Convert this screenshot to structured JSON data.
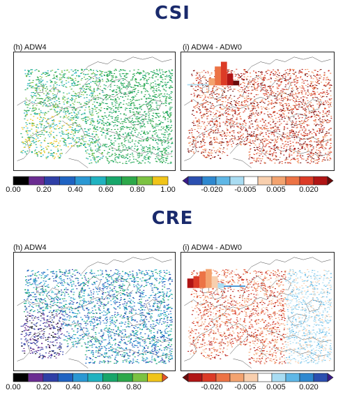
{
  "csi": {
    "title": "CSI",
    "left_label": "(h) ADW4",
    "right_label": "(i) ADW4 - ADW0",
    "left_colorbar": {
      "ticks": [
        "0.00",
        "0.20",
        "0.40",
        "0.60",
        "0.80",
        "1.00"
      ],
      "colors": [
        "#000000",
        "#6a2c91",
        "#2f3fa6",
        "#1f63c2",
        "#2a98d3",
        "#20b2c0",
        "#18a66a",
        "#2da84a",
        "#7cc242",
        "#f0c419"
      ]
    },
    "right_colorbar": {
      "ticks": [
        "-0.020",
        "-0.005",
        "0.005",
        "0.020"
      ],
      "colors": [
        "#3a1b8a",
        "#2b4fb0",
        "#2e88d0",
        "#5fb7e6",
        "#a9dcf2",
        "#ffffff",
        "#f8cfae",
        "#f3a36f",
        "#ec7345",
        "#dc3b26",
        "#b01515",
        "#6a0a0a"
      ]
    }
  },
  "cre": {
    "title": "CRE",
    "left_label": "(h) ADW4",
    "right_label": "(i) ADW4 - ADW0",
    "left_colorbar": {
      "ticks": [
        "0.00",
        "0.20",
        "0.40",
        "0.60",
        "0.80"
      ],
      "colors": [
        "#000000",
        "#6a2c91",
        "#2f3fa6",
        "#1f63c2",
        "#2a98d3",
        "#20b2c0",
        "#18a66a",
        "#2da84a",
        "#7cc242",
        "#f0c419",
        "#e8552a"
      ]
    },
    "right_colorbar": {
      "ticks": [
        "-0.020",
        "-0.005",
        "0.005",
        "0.020"
      ],
      "colors": [
        "#6a0a0a",
        "#b01515",
        "#dc3b26",
        "#ec7345",
        "#f3a36f",
        "#f8cfae",
        "#ffffff",
        "#a9dcf2",
        "#5fb7e6",
        "#2e88d0",
        "#2b4fb0",
        "#3a1b8a"
      ]
    }
  }
}
